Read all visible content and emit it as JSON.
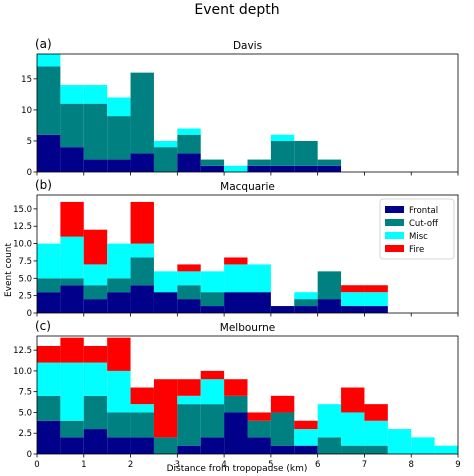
{
  "title": "Event depth",
  "xlabel": "Distance from tropopause (km)",
  "ylabel": "Event count",
  "legend": {
    "placement": "top-right",
    "entries": [
      {
        "name": "Frontal",
        "color": "#00008b"
      },
      {
        "name": "Cut-off",
        "color": "#008080"
      },
      {
        "name": "Misc",
        "color": "#00ffff"
      },
      {
        "name": "Fire",
        "color": "#ff0000"
      }
    ]
  },
  "chart_data": [
    {
      "type": "bar",
      "stacked": true,
      "panel_label": "(a)",
      "title": "Davis",
      "bin_width": 0.5,
      "bin_starts": [
        0,
        0.5,
        1,
        1.5,
        2,
        2.5,
        3,
        3.5,
        4,
        4.5,
        5,
        5.5,
        6,
        6.5,
        7,
        7.5,
        8,
        8.5
      ],
      "series": [
        {
          "name": "Frontal",
          "values": [
            6,
            4,
            2,
            2,
            3,
            0,
            3,
            1,
            0,
            1,
            1,
            1,
            1,
            0,
            0,
            0,
            0,
            0
          ]
        },
        {
          "name": "Cut-off",
          "values": [
            11,
            7,
            9,
            7,
            13,
            4,
            3,
            1,
            0,
            1,
            4,
            4,
            1,
            0,
            0,
            0,
            0,
            0
          ]
        },
        {
          "name": "Misc",
          "values": [
            2,
            3,
            3,
            3,
            0,
            1,
            1,
            0,
            1,
            0,
            1,
            0,
            0,
            0,
            0,
            0,
            0,
            0
          ]
        },
        {
          "name": "Fire",
          "values": [
            0,
            0,
            0,
            0,
            0,
            0,
            0,
            0,
            0,
            0,
            0,
            0,
            0,
            0,
            0,
            0,
            0,
            0
          ]
        }
      ],
      "xlim": [
        0,
        9
      ],
      "ylim": [
        0,
        19
      ],
      "yticks": [
        0,
        5,
        10,
        15
      ],
      "ytick_labels": [
        "0",
        "5",
        "10",
        "15"
      ],
      "xtick_labels_shown": false
    },
    {
      "type": "bar",
      "stacked": true,
      "panel_label": "(b)",
      "title": "Macquarie",
      "bin_width": 0.5,
      "bin_starts": [
        0,
        0.5,
        1,
        1.5,
        2,
        2.5,
        3,
        3.5,
        4,
        4.5,
        5,
        5.5,
        6,
        6.5,
        7,
        7.5,
        8,
        8.5
      ],
      "series": [
        {
          "name": "Frontal",
          "values": [
            3,
            4,
            2,
            3,
            4,
            3,
            2,
            1,
            3,
            3,
            1,
            1,
            2,
            1,
            1,
            0,
            0,
            0
          ]
        },
        {
          "name": "Cut-off",
          "values": [
            2,
            1,
            2,
            2,
            4,
            0,
            2,
            2,
            0,
            0,
            0,
            1,
            4,
            0,
            0,
            0,
            0,
            0
          ]
        },
        {
          "name": "Misc",
          "values": [
            5,
            6,
            3,
            5,
            2,
            3,
            2,
            3,
            4,
            4,
            0,
            1,
            0,
            2,
            2,
            0,
            0,
            0
          ]
        },
        {
          "name": "Fire",
          "values": [
            0,
            5,
            5,
            0,
            6,
            0,
            1,
            0,
            1,
            0,
            0,
            0,
            0,
            1,
            1,
            0,
            0,
            0
          ]
        }
      ],
      "xlim": [
        0,
        9
      ],
      "ylim": [
        0,
        17
      ],
      "yticks": [
        0,
        2.5,
        5,
        7.5,
        10,
        12.5,
        15
      ],
      "ytick_labels": [
        "0",
        "2.5",
        "5.0",
        "7.5",
        "10.0",
        "12.5",
        "15.0"
      ],
      "xtick_labels_shown": false
    },
    {
      "type": "bar",
      "stacked": true,
      "panel_label": "(c)",
      "title": "Melbourne",
      "bin_width": 0.5,
      "bin_starts": [
        0,
        0.5,
        1,
        1.5,
        2,
        2.5,
        3,
        3.5,
        4,
        4.5,
        5,
        5.5,
        6,
        6.5,
        7,
        7.5,
        8,
        8.5
      ],
      "series": [
        {
          "name": "Frontal",
          "values": [
            4,
            2,
            3,
            2,
            2,
            0,
            1,
            2,
            5,
            2,
            1,
            1,
            0,
            0,
            0,
            0,
            0,
            0
          ]
        },
        {
          "name": "Cut-off",
          "values": [
            3,
            2,
            4,
            3,
            3,
            2,
            5,
            4,
            2,
            2,
            4,
            0,
            2,
            1,
            1,
            0,
            0,
            0
          ]
        },
        {
          "name": "Misc",
          "values": [
            4,
            7,
            4,
            5,
            1,
            0,
            1,
            3,
            0,
            0,
            0,
            2,
            4,
            4,
            3,
            3,
            2,
            1
          ]
        },
        {
          "name": "Fire",
          "values": [
            2,
            3,
            2,
            4,
            2,
            7,
            2,
            1,
            2,
            1,
            2,
            1,
            0,
            3,
            2,
            0,
            0,
            0
          ]
        }
      ],
      "xlim": [
        0,
        9
      ],
      "ylim": [
        0,
        14.2
      ],
      "yticks": [
        0,
        2.5,
        5,
        7.5,
        10,
        12.5
      ],
      "ytick_labels": [
        "0",
        "2.5",
        "5.0",
        "7.5",
        "10.0",
        "12.5"
      ],
      "xticks": [
        0,
        1,
        2,
        3,
        4,
        5,
        6,
        7,
        8,
        9
      ],
      "xtick_labels_shown": true
    }
  ]
}
